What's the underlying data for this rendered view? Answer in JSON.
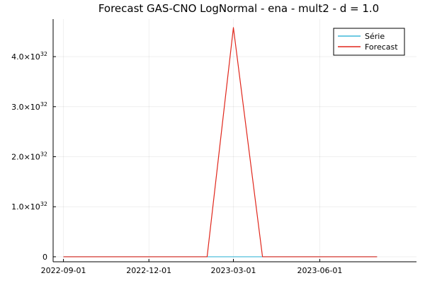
{
  "chart_data": {
    "type": "line",
    "title": "Forecast GAS-CNO LogNormal - ena - mult2 - d = 1.0",
    "xlabel": "",
    "ylabel": "",
    "x_ticks": [
      {
        "date": "2022-09-01",
        "label": "2022-09-01"
      },
      {
        "date": "2022-12-01",
        "label": "2022-12-01"
      },
      {
        "date": "2023-03-01",
        "label": "2023-03-01"
      },
      {
        "date": "2023-06-01",
        "label": "2023-06-01"
      }
    ],
    "y_ticks": [
      {
        "value": 0,
        "base": "0",
        "exp": ""
      },
      {
        "value": 1e+32,
        "base": "1.0×10",
        "exp": "32"
      },
      {
        "value": 2e+32,
        "base": "2.0×10",
        "exp": "32"
      },
      {
        "value": 3e+32,
        "base": "3.0×10",
        "exp": "32"
      },
      {
        "value": 4e+32,
        "base": "4.0×10",
        "exp": "32"
      }
    ],
    "xlim": [
      "2022-08-21",
      "2023-09-12"
    ],
    "ylim": [
      -1e+31,
      4.75e+32
    ],
    "grid": true,
    "legend_position": "top-right",
    "series": [
      {
        "name": "Série",
        "color": "#3fb9d8",
        "x": [
          "2022-09-01",
          "2022-10-01",
          "2022-11-01",
          "2022-12-01",
          "2023-01-01",
          "2023-02-01",
          "2023-03-01",
          "2023-04-01",
          "2023-05-01",
          "2023-06-01",
          "2023-07-01",
          "2023-08-01"
        ],
        "y": [
          0,
          0,
          0,
          0,
          0,
          0,
          0,
          0,
          0,
          0,
          0,
          0
        ]
      },
      {
        "name": "Forecast",
        "color": "#e0261b",
        "x": [
          "2022-09-01",
          "2022-10-01",
          "2022-11-01",
          "2022-12-01",
          "2023-01-01",
          "2023-02-01",
          "2023-03-01",
          "2023-04-01",
          "2023-05-01",
          "2023-06-01",
          "2023-07-01",
          "2023-08-01"
        ],
        "y": [
          0,
          0,
          0,
          0,
          0,
          0,
          4.58e+32,
          0,
          0,
          0,
          0,
          0
        ]
      }
    ]
  }
}
